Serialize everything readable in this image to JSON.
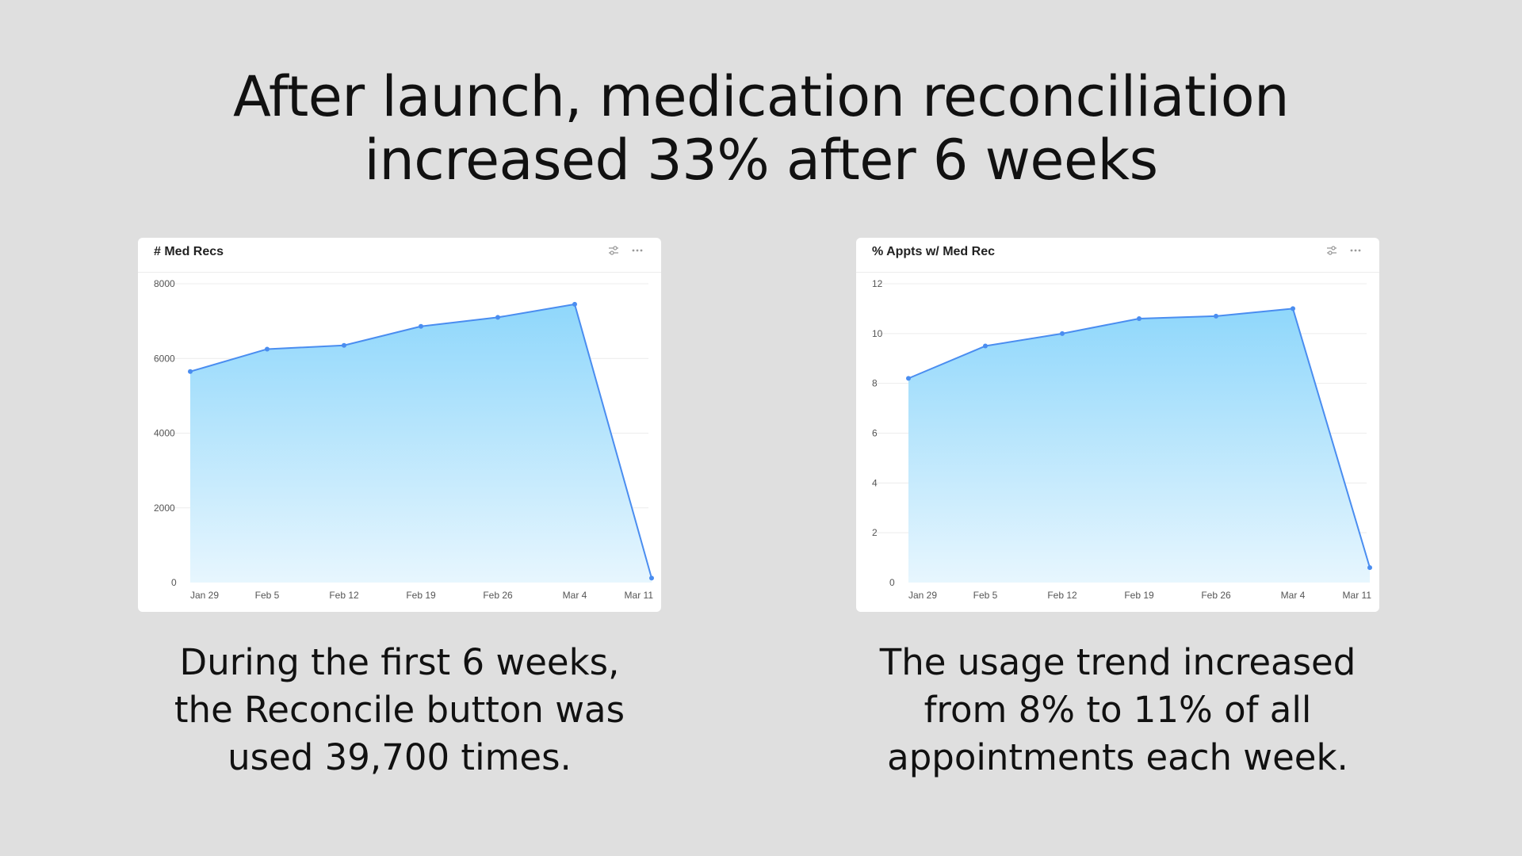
{
  "headline": {
    "line1": "After launch, medication reconciliation",
    "line2": "increased 33% after 6 weeks"
  },
  "colors": {
    "line": "#4a8df0",
    "area_top": "#8fd7fb",
    "area_bottom": "#e7f6fe",
    "grid": "#ececec",
    "tick": "#555555"
  },
  "icons": [
    "filter-sliders-icon",
    "more-dots-icon"
  ],
  "chart_data": [
    {
      "type": "area",
      "title": "# Med Recs",
      "x": [
        "Jan 29",
        "Feb 5",
        "Feb 12",
        "Feb 19",
        "Feb 26",
        "Mar 4",
        "Mar 11"
      ],
      "series": [
        {
          "values": [
            5650,
            6250,
            6350,
            6860,
            7100,
            7450,
            120
          ]
        }
      ],
      "yticks": [
        0,
        2000,
        4000,
        6000,
        8000
      ],
      "ylim": [
        0,
        8000
      ],
      "grid": true,
      "legend": "none"
    },
    {
      "type": "area",
      "title": "% Appts w/ Med Rec",
      "x": [
        "Jan 29",
        "Feb 5",
        "Feb 12",
        "Feb 19",
        "Feb 26",
        "Mar 4",
        "Mar 11"
      ],
      "series": [
        {
          "values": [
            8.2,
            9.5,
            10.0,
            10.6,
            10.7,
            11.0,
            0.6
          ]
        }
      ],
      "yticks": [
        0,
        2,
        4,
        6,
        8,
        10,
        12
      ],
      "ylim": [
        0,
        12
      ],
      "grid": true,
      "legend": "none"
    }
  ],
  "captions": {
    "left": [
      "During the first 6 weeks,",
      "the Reconcile button was",
      "used 39,700 times."
    ],
    "right": [
      "The usage trend increased",
      "from 8% to 11% of all",
      "appointments each week."
    ]
  }
}
